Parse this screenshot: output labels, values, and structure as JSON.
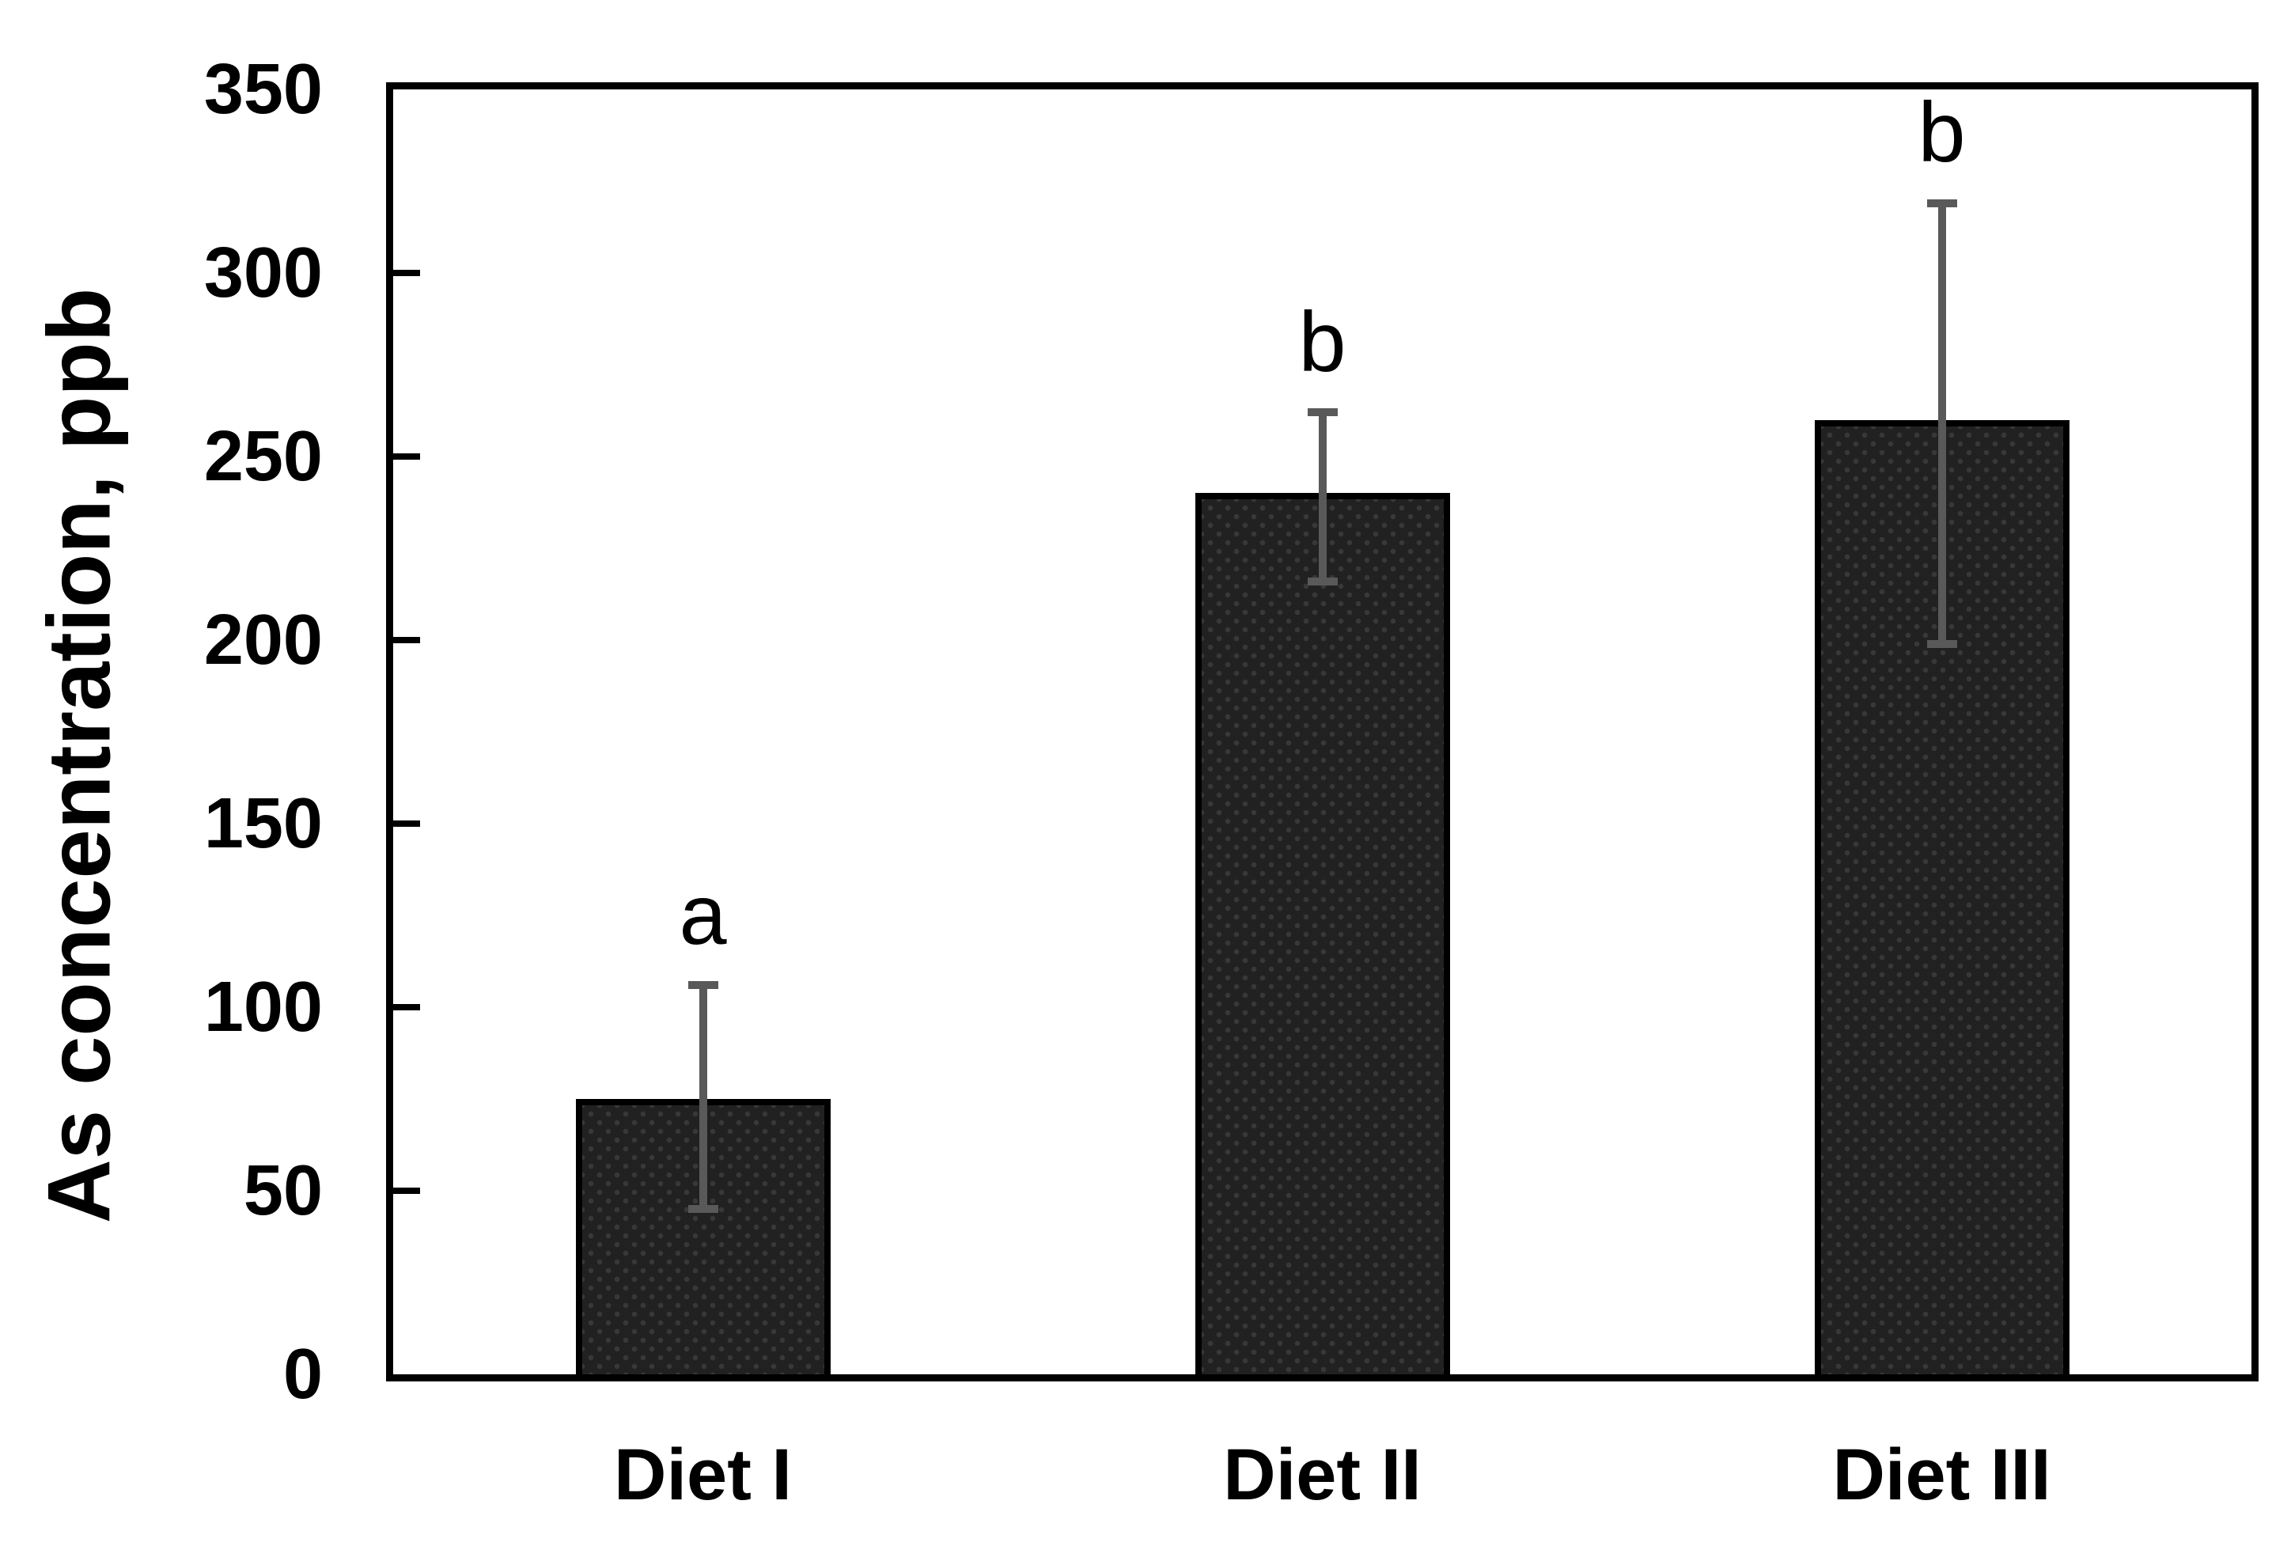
{
  "chart_data": {
    "type": "bar",
    "title": "",
    "xlabel": "",
    "ylabel": "As concentration, ppb",
    "categories": [
      "Diet I",
      "Diet II",
      "Diet III"
    ],
    "values": [
      75,
      240,
      260
    ],
    "error_bars": {
      "whisker_high": [
        106,
        262,
        319
      ],
      "whisker_low": [
        45,
        216,
        199
      ]
    },
    "sig_letters": [
      "a",
      "b",
      "b"
    ],
    "ylim": [
      0,
      350
    ],
    "ytick_step": 50,
    "yticks": [
      0,
      50,
      100,
      150,
      200,
      250,
      300,
      350
    ],
    "grid": false,
    "legend": false,
    "plot_frame": "full box, ticks inside on y-axis"
  },
  "colors": {
    "background": "#ffffff",
    "axis": "#000000",
    "text": "#000000",
    "bar_fill": "#212121",
    "bar_dot": "#383838",
    "bar_border": "#000000",
    "error_bar": "#595959"
  }
}
